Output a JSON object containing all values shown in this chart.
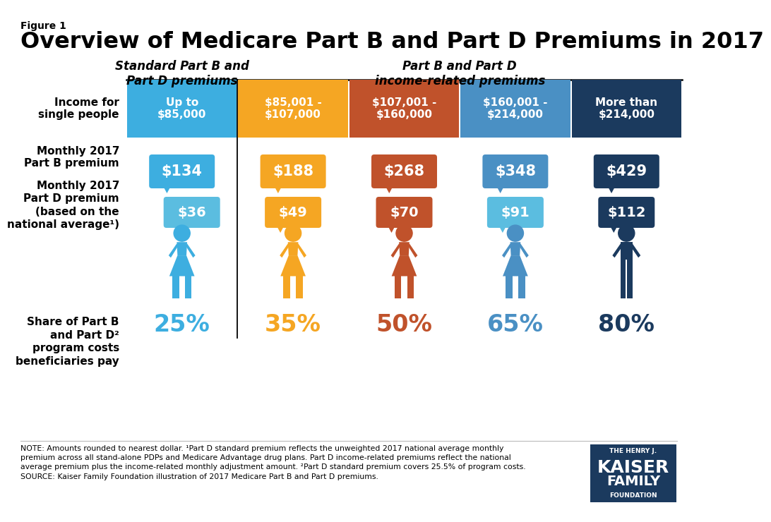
{
  "figure_label": "Figure 1",
  "title": "Overview of Medicare Part B and Part D Premiums in 2017",
  "col_header_left": "Standard Part B and\nPart D premiums",
  "col_header_right": "Part B and Part D\nincome-related premiums",
  "income_labels": [
    "Up to\n$85,000",
    "$85,001 -\n$107,000",
    "$107,001 -\n$160,000",
    "$160,001 -\n$214,000",
    "More than\n$214,000"
  ],
  "header_colors": [
    "#3daee0",
    "#f5a623",
    "#c0522b",
    "#4a90c4",
    "#1b3a5e"
  ],
  "part_b_premiums": [
    "$134",
    "$188",
    "$268",
    "$348",
    "$429"
  ],
  "part_d_premiums": [
    "$36",
    "$49",
    "$70",
    "$91",
    "$112"
  ],
  "shares": [
    "25%",
    "35%",
    "50%",
    "65%",
    "80%"
  ],
  "bubble_colors_b": [
    "#3daee0",
    "#f5a623",
    "#c0522b",
    "#4a90c4",
    "#1b3a5e"
  ],
  "bubble_colors_d": [
    "#5bbde0",
    "#f5a623",
    "#c0522b",
    "#5bbde0",
    "#1b3a5e"
  ],
  "share_colors": [
    "#3daee0",
    "#f5a623",
    "#c0522b",
    "#4a90c4",
    "#1b3a5e"
  ],
  "icon_colors": [
    "#3daee0",
    "#f5a623",
    "#c0522b",
    "#4a90c4",
    "#1b3a5e"
  ],
  "note_text": "NOTE: Amounts rounded to nearest dollar. ¹Part D standard premium reflects the unweighted 2017 national average monthly\npremium across all stand-alone PDPs and Medicare Advantage drug plans. Part D income-related premiums reflect the national\naverage premium plus the income-related monthly adjustment amount. ²Part D standard premium covers 25.5% of program costs.\nSOURCE: Kaiser Family Foundation illustration of 2017 Medicare Part B and Part D premiums.",
  "kff_logo_color": "#1b3a5e",
  "row_label_1": "Income for\nsingle people",
  "row_label_2": "Monthly 2017\nPart B premium",
  "row_label_3": "Monthly 2017\nPart D premium\n(based on the\nnational average¹)",
  "row_label_4": "Share of Part B\nand Part D²\nprogram costs\nbeneficiaries pay",
  "bg_color": "#ffffff"
}
